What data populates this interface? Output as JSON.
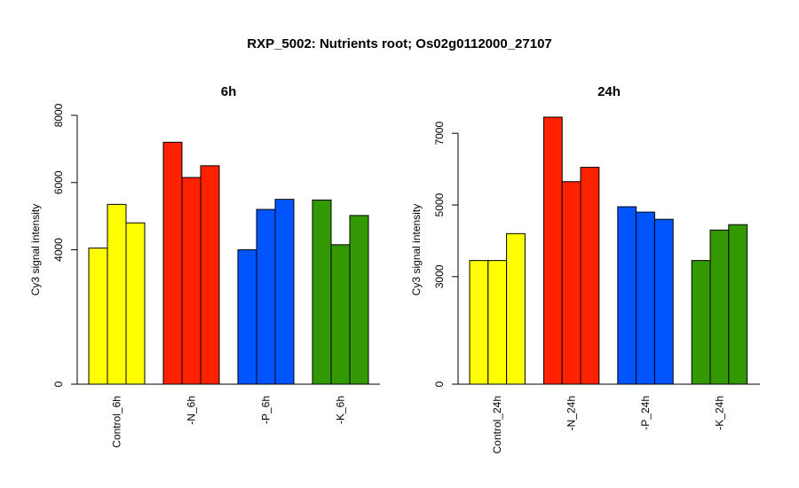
{
  "title": "RXP_5002: Nutrients root; Os02g0112000_27107",
  "chart_data": [
    {
      "type": "bar",
      "title": "6h",
      "ylabel": "Cy3 signal intensity",
      "xlabel": "",
      "ylim": [
        0,
        8000
      ],
      "yticks": [
        0,
        4000,
        6000,
        8000
      ],
      "categories": [
        "Control_6h",
        "-N_6h",
        "-P_6h",
        "-K_6h"
      ],
      "colors": [
        "#ffff00",
        "#ff2200",
        "#0055ff",
        "#339900"
      ],
      "values": [
        [
          4050,
          5350,
          4800
        ],
        [
          7200,
          6150,
          6500
        ],
        [
          4000,
          5200,
          5500
        ],
        [
          5480,
          4150,
          5020
        ]
      ]
    },
    {
      "type": "bar",
      "title": "24h",
      "ylabel": "Cy3 signal intensity",
      "xlabel": "",
      "ylim": [
        0,
        7500
      ],
      "yticks": [
        0,
        3000,
        5000,
        7000
      ],
      "categories": [
        "Control_24h",
        "-N_24h",
        "-P_24h",
        "-K_24h"
      ],
      "colors": [
        "#ffff00",
        "#ff2200",
        "#0055ff",
        "#339900"
      ],
      "values": [
        [
          3450,
          3450,
          4200
        ],
        [
          7450,
          5650,
          6050
        ],
        [
          4950,
          4800,
          4600
        ],
        [
          3450,
          4300,
          4450
        ]
      ]
    }
  ]
}
